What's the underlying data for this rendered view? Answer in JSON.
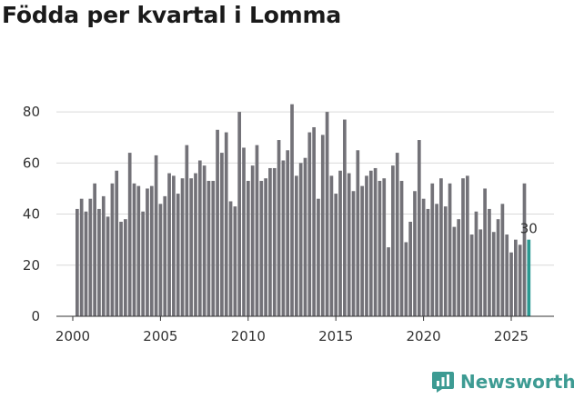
{
  "brand": {
    "name": "Newsworthy",
    "color": "#3d9b93"
  },
  "chart_data": {
    "type": "bar",
    "title": "Födda per kvartal i Lomma",
    "xlabel": "",
    "ylabel": "",
    "ylim": [
      0,
      90
    ],
    "yticks": [
      0,
      20,
      40,
      60,
      80
    ],
    "xticks": [
      2000,
      2005,
      2010,
      2015,
      2020,
      2025
    ],
    "x_start": 2000,
    "grid": true,
    "bar_color": "#737278",
    "highlight_color": "#2a9a92",
    "highlight_label": "30",
    "values": [
      42,
      46,
      41,
      46,
      52,
      42,
      47,
      39,
      52,
      57,
      37,
      38,
      64,
      52,
      51,
      41,
      50,
      51,
      63,
      44,
      47,
      56,
      55,
      48,
      54,
      67,
      54,
      56,
      61,
      59,
      53,
      53,
      73,
      64,
      72,
      45,
      43,
      80,
      66,
      53,
      59,
      67,
      53,
      54,
      58,
      58,
      69,
      61,
      65,
      83,
      55,
      60,
      62,
      72,
      74,
      46,
      71,
      80,
      55,
      48,
      57,
      77,
      56,
      49,
      65,
      51,
      55,
      57,
      58,
      53,
      54,
      27,
      59,
      64,
      53,
      29,
      37,
      49,
      69,
      46,
      42,
      52,
      44,
      54,
      43,
      52,
      35,
      38,
      54,
      55,
      32,
      41,
      34,
      50,
      42,
      33,
      38,
      44,
      32,
      25,
      30,
      28,
      52,
      30
    ]
  }
}
